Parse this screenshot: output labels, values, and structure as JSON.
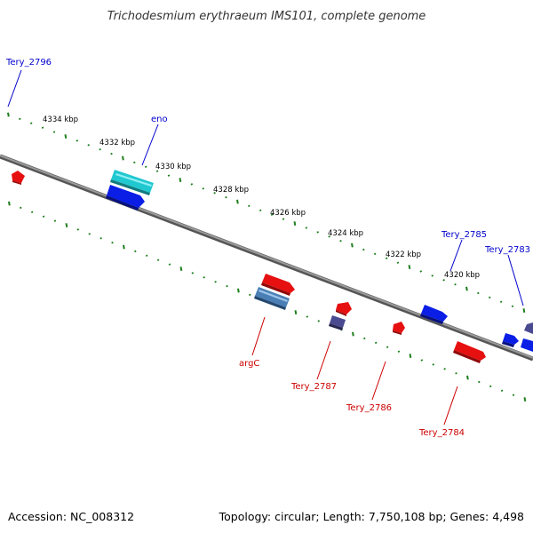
{
  "title": "Trichodesmium erythraeum IMS101, complete genome",
  "footer": {
    "accession": "Accession: NC_008312",
    "topology": "Topology: circular; Length: 7,750,108 bp; Genes: 4,498"
  },
  "colors": {
    "backbone": "#8a8a8a",
    "tick": "#1e7f1e",
    "forward_label": "#0000cc",
    "reverse_label": "#cc0000",
    "gene_blue": "#0a1ee6",
    "gene_red": "#e61010",
    "gene_cyan": "#20c8d0",
    "gene_steel": "#4a7fb5",
    "gene_purple": "#4a4a90"
  },
  "scale_labels": [
    "4334 kbp",
    "4332 kbp",
    "4330 kbp",
    "4328 kbp",
    "4326 kbp",
    "4324 kbp",
    "4322 kbp",
    "4320 kbp"
  ],
  "forward_labels": [
    "Tery_2796",
    "eno",
    "Tery_2785",
    "Tery_2783"
  ],
  "reverse_labels": [
    "argC",
    "Tery_2787",
    "Tery_2786",
    "Tery_2784"
  ]
}
